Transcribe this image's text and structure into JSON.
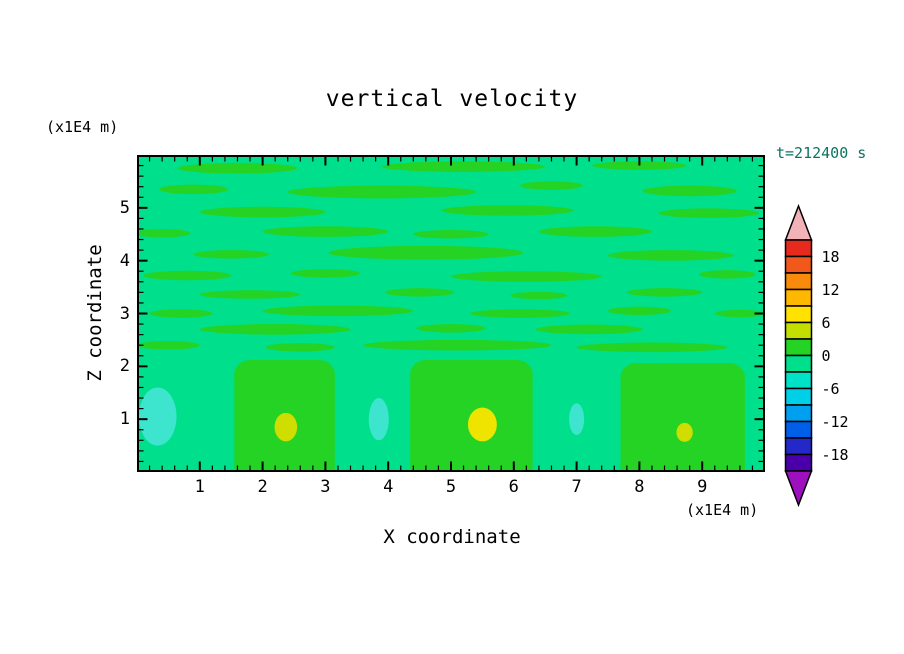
{
  "title": "vertical velocity",
  "timestamp": "t=212400 s",
  "axes": {
    "x_label": "X coordinate",
    "z_label": "Z coordinate",
    "x_unit": "(x1E4 m)",
    "z_unit": "(x1E4 m)",
    "x_ticks": [
      "1",
      "2",
      "3",
      "4",
      "5",
      "6",
      "7",
      "8",
      "9"
    ],
    "z_ticks": [
      "1",
      "2",
      "3",
      "4",
      "5"
    ]
  },
  "colors": {
    "timestamp": "#0D7360",
    "frame": "#000000",
    "text": "#000000",
    "page_background": "#FFFFFF"
  },
  "chart_data": {
    "type": "heatmap",
    "title": "vertical velocity",
    "xlabel": "X coordinate (x1E4 m)",
    "ylabel": "Z coordinate (x1E4 m)",
    "time_label": "t=212400 s",
    "x_range": [
      0,
      10
    ],
    "z_range": [
      0,
      6
    ],
    "x_major_ticks": [
      1,
      2,
      3,
      4,
      5,
      6,
      7,
      8,
      9
    ],
    "z_major_ticks": [
      1,
      2,
      3,
      4,
      5
    ],
    "minor_tick_step": 0.2,
    "grid": false,
    "legend_position": "right-colorbar",
    "colorbar": {
      "labels": [
        "18",
        "12",
        "6",
        "0",
        "-6",
        "-12",
        "-18"
      ],
      "label_boundary_index": [
        1,
        3,
        5,
        7,
        9,
        11,
        13
      ],
      "segment_size": 3,
      "range": [
        -21,
        21
      ],
      "segment_colors_top_to_bottom": [
        "#E62A1E",
        "#F1581C",
        "#F98A0B",
        "#FFB800",
        "#FFE200",
        "#C3DF00",
        "#25D325",
        "#00DF8B",
        "#00E2C8",
        "#00CFE8",
        "#009FF0",
        "#005FE8",
        "#2428C8",
        "#4A00A8"
      ],
      "arrow_top_color": "#F2B3B8",
      "arrow_bottom_color": "#9C10BE"
    },
    "field": {
      "description": "Contour field of vertical velocity: weak background (-3..0 band), streaky weak updrafts (0..3) above z=2, three updraft columns below z=2 with yellow cores (3..9), cyan downdraft patches (-9..-3) between columns.",
      "background_level": "-3..0",
      "background_color": "#00DF8B",
      "updraft_color": "#25D325",
      "downdraft_color": "#3DE4CE",
      "yellow_core_color": "#CFDD00",
      "bright_yellow_core_color": "#EFE400",
      "columns": [
        [
          1.55,
          3.15,
          0,
          2.12
        ],
        [
          4.35,
          6.3,
          0,
          2.12
        ],
        [
          7.7,
          9.68,
          0,
          2.06
        ]
      ],
      "blobs": [
        [
          0.33,
          1.05,
          0.3,
          0.55,
          "downdraft_color"
        ],
        [
          3.85,
          1.0,
          0.16,
          0.4,
          "downdraft_color"
        ],
        [
          7.0,
          1.0,
          0.12,
          0.3,
          "downdraft_color"
        ],
        [
          2.37,
          0.85,
          0.18,
          0.27,
          "yellow_core_color"
        ],
        [
          5.5,
          0.9,
          0.23,
          0.32,
          "bright_yellow_core_color"
        ],
        [
          8.72,
          0.75,
          0.13,
          0.18,
          "yellow_core_color"
        ]
      ],
      "streaks": [
        [
          1.6,
          5.75,
          0.95,
          0.1
        ],
        [
          5.2,
          5.78,
          1.3,
          0.1
        ],
        [
          8.0,
          5.8,
          0.75,
          0.08
        ],
        [
          0.9,
          5.35,
          0.55,
          0.09
        ],
        [
          3.9,
          5.3,
          1.5,
          0.12
        ],
        [
          6.6,
          5.42,
          0.5,
          0.08
        ],
        [
          8.8,
          5.32,
          0.75,
          0.1
        ],
        [
          2.0,
          4.92,
          1.0,
          0.1
        ],
        [
          5.9,
          4.95,
          1.05,
          0.1
        ],
        [
          9.1,
          4.9,
          0.8,
          0.09
        ],
        [
          0.4,
          4.52,
          0.45,
          0.08
        ],
        [
          3.0,
          4.55,
          1.0,
          0.1
        ],
        [
          5.0,
          4.5,
          0.6,
          0.08
        ],
        [
          7.3,
          4.55,
          0.9,
          0.1
        ],
        [
          1.5,
          4.12,
          0.6,
          0.08
        ],
        [
          4.6,
          4.15,
          1.55,
          0.13
        ],
        [
          8.5,
          4.1,
          1.0,
          0.1
        ],
        [
          0.8,
          3.72,
          0.7,
          0.09
        ],
        [
          3.0,
          3.76,
          0.55,
          0.08
        ],
        [
          6.2,
          3.7,
          1.2,
          0.1
        ],
        [
          9.4,
          3.74,
          0.45,
          0.08
        ],
        [
          1.8,
          3.36,
          0.8,
          0.08
        ],
        [
          4.5,
          3.4,
          0.55,
          0.08
        ],
        [
          6.4,
          3.34,
          0.45,
          0.07
        ],
        [
          8.4,
          3.4,
          0.6,
          0.08
        ],
        [
          0.7,
          3.0,
          0.5,
          0.08
        ],
        [
          3.2,
          3.05,
          1.2,
          0.1
        ],
        [
          6.1,
          3.0,
          0.8,
          0.08
        ],
        [
          8.0,
          3.05,
          0.5,
          0.08
        ],
        [
          9.6,
          3.0,
          0.4,
          0.07
        ],
        [
          2.2,
          2.7,
          1.2,
          0.1
        ],
        [
          5.0,
          2.72,
          0.55,
          0.08
        ],
        [
          7.2,
          2.7,
          0.85,
          0.09
        ],
        [
          0.5,
          2.4,
          0.5,
          0.08
        ],
        [
          2.6,
          2.36,
          0.55,
          0.08
        ],
        [
          5.1,
          2.4,
          1.5,
          0.1
        ],
        [
          8.2,
          2.36,
          1.2,
          0.09
        ]
      ]
    }
  }
}
